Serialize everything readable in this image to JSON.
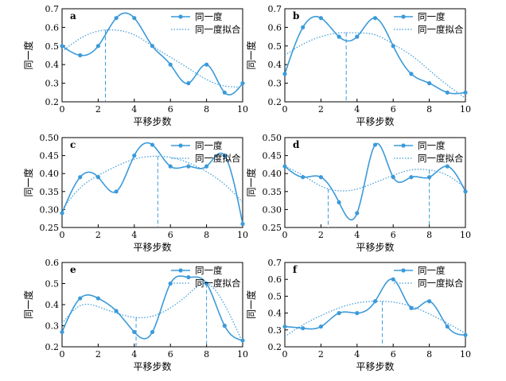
{
  "colors": {
    "series": "#3b9ad9",
    "axis": "#000000"
  },
  "legend": {
    "data_label": "同一度",
    "fit_label": "同一度拟合"
  },
  "chart_data": [
    {
      "panel": "a",
      "type": "line",
      "xlabel": "平移步数",
      "ylabel": "同一度",
      "xlim": [
        0,
        10
      ],
      "ylim": [
        0.2,
        0.7
      ],
      "xticks": [
        "0",
        "2",
        "4",
        "6",
        "8",
        "10"
      ],
      "yticks": [
        "0.2",
        "0.3",
        "0.4",
        "0.5",
        "0.6",
        "0.7"
      ],
      "series": [
        {
          "name": "同一度",
          "x": [
            0,
            1,
            2,
            3,
            4,
            5,
            6,
            7,
            8,
            9,
            10
          ],
          "y": [
            0.5,
            0.45,
            0.5,
            0.65,
            0.65,
            0.5,
            0.4,
            0.3,
            0.4,
            0.25,
            0.3
          ]
        },
        {
          "name": "同一度拟合",
          "x": [
            0,
            1,
            2,
            3,
            4,
            5,
            6,
            7,
            8,
            9,
            10
          ],
          "y": [
            0.47,
            0.54,
            0.58,
            0.585,
            0.56,
            0.5,
            0.44,
            0.38,
            0.32,
            0.285,
            0.28
          ]
        }
      ],
      "markers_x": [
        2.4
      ]
    },
    {
      "panel": "b",
      "type": "line",
      "xlabel": "平移步数",
      "ylabel": "同一度",
      "xlim": [
        0,
        10
      ],
      "ylim": [
        0.2,
        0.7
      ],
      "xticks": [
        "0",
        "2",
        "4",
        "6",
        "8",
        "10"
      ],
      "yticks": [
        "0.2",
        "0.3",
        "0.4",
        "0.5",
        "0.6",
        "0.7"
      ],
      "series": [
        {
          "name": "同一度",
          "x": [
            0,
            1,
            2,
            3,
            4,
            5,
            6,
            7,
            8,
            9,
            10
          ],
          "y": [
            0.35,
            0.6,
            0.65,
            0.55,
            0.55,
            0.65,
            0.5,
            0.35,
            0.3,
            0.25,
            0.25
          ]
        },
        {
          "name": "同一度拟合",
          "x": [
            0,
            1,
            2,
            3,
            4,
            5,
            6,
            7,
            8,
            9,
            10
          ],
          "y": [
            0.45,
            0.51,
            0.55,
            0.57,
            0.57,
            0.56,
            0.51,
            0.45,
            0.37,
            0.29,
            0.22
          ]
        }
      ],
      "markers_x": [
        3.4
      ]
    },
    {
      "panel": "c",
      "type": "line",
      "xlabel": "平移步数",
      "ylabel": "同一度",
      "xlim": [
        0,
        10
      ],
      "ylim": [
        0.25,
        0.5
      ],
      "xticks": [
        "0",
        "2",
        "4",
        "6",
        "8",
        "10"
      ],
      "yticks": [
        "0.25",
        "0.30",
        "0.35",
        "0.40",
        "0.45",
        "0.50"
      ],
      "series": [
        {
          "name": "同一度",
          "x": [
            0,
            1,
            2,
            3,
            4,
            5,
            6,
            7,
            8,
            9,
            10
          ],
          "y": [
            0.29,
            0.39,
            0.39,
            0.35,
            0.45,
            0.48,
            0.42,
            0.42,
            0.42,
            0.45,
            0.26
          ]
        },
        {
          "name": "同一度拟合",
          "x": [
            0,
            1,
            2,
            3,
            4,
            5,
            6,
            7,
            8,
            9,
            10
          ],
          "y": [
            0.3,
            0.36,
            0.395,
            0.42,
            0.44,
            0.448,
            0.445,
            0.43,
            0.405,
            0.37,
            0.32
          ]
        }
      ],
      "markers_x": [
        5.3
      ]
    },
    {
      "panel": "d",
      "type": "line",
      "xlabel": "平移步数",
      "ylabel": "同一度",
      "xlim": [
        0,
        10
      ],
      "ylim": [
        0.25,
        0.5
      ],
      "xticks": [
        "0",
        "2",
        "4",
        "6",
        "8",
        "10"
      ],
      "yticks": [
        "0.25",
        "0.30",
        "0.35",
        "0.40",
        "0.45",
        "0.50"
      ],
      "series": [
        {
          "name": "同一度",
          "x": [
            0,
            1,
            2,
            3,
            4,
            5,
            6,
            7,
            8,
            9,
            10
          ],
          "y": [
            0.42,
            0.39,
            0.39,
            0.32,
            0.29,
            0.48,
            0.39,
            0.39,
            0.39,
            0.42,
            0.35
          ]
        },
        {
          "name": "同一度拟合",
          "x": [
            0,
            1,
            2,
            3,
            4,
            5,
            6,
            7,
            8,
            9,
            10
          ],
          "y": [
            0.42,
            0.395,
            0.365,
            0.352,
            0.357,
            0.375,
            0.395,
            0.41,
            0.41,
            0.395,
            0.36
          ]
        }
      ],
      "markers_x": [
        2.4,
        8.0
      ]
    },
    {
      "panel": "e",
      "type": "line",
      "xlabel": "平移步数",
      "ylabel": "同一度",
      "xlim": [
        0,
        10
      ],
      "ylim": [
        0.2,
        0.6
      ],
      "xticks": [
        "0",
        "2",
        "4",
        "6",
        "8",
        "10"
      ],
      "yticks": [
        "0.2",
        "0.3",
        "0.4",
        "0.5",
        "0.6"
      ],
      "series": [
        {
          "name": "同一度",
          "x": [
            0,
            1,
            2,
            3,
            4,
            5,
            6,
            7,
            8,
            9,
            10
          ],
          "y": [
            0.27,
            0.43,
            0.43,
            0.37,
            0.27,
            0.27,
            0.5,
            0.53,
            0.5,
            0.3,
            0.23
          ]
        },
        {
          "name": "同一度拟合",
          "x": [
            0,
            1,
            2,
            3,
            4,
            5,
            6,
            7,
            8,
            9,
            10
          ],
          "y": [
            0.31,
            0.395,
            0.39,
            0.36,
            0.34,
            0.345,
            0.385,
            0.45,
            0.5,
            0.4,
            0.22
          ]
        }
      ],
      "markers_x": [
        4.1,
        8.0
      ]
    },
    {
      "panel": "f",
      "type": "line",
      "xlabel": "平移步数",
      "ylabel": "同一度",
      "xlim": [
        0,
        10
      ],
      "ylim": [
        0.2,
        0.7
      ],
      "xticks": [
        "0",
        "2",
        "4",
        "6",
        "8",
        "10"
      ],
      "yticks": [
        "0.2",
        "0.3",
        "0.4",
        "0.5",
        "0.6",
        "0.7"
      ],
      "series": [
        {
          "name": "同一度",
          "x": [
            0,
            1,
            2,
            3,
            4,
            5,
            6,
            7,
            8,
            9,
            10
          ],
          "y": [
            0.32,
            0.31,
            0.32,
            0.4,
            0.4,
            0.47,
            0.6,
            0.43,
            0.47,
            0.32,
            0.27
          ]
        },
        {
          "name": "同一度拟合",
          "x": [
            0,
            1,
            2,
            3,
            4,
            5,
            6,
            7,
            8,
            9,
            10
          ],
          "y": [
            0.26,
            0.33,
            0.385,
            0.43,
            0.46,
            0.47,
            0.465,
            0.44,
            0.395,
            0.34,
            0.28
          ]
        }
      ],
      "markers_x": [
        5.4
      ]
    }
  ]
}
